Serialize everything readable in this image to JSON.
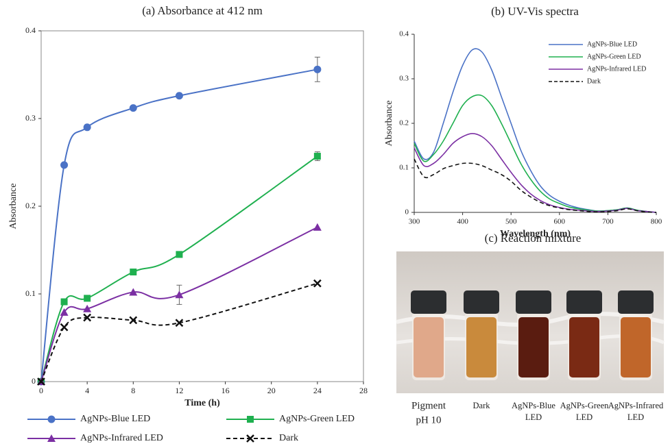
{
  "chart_data": [
    {
      "type": "line",
      "title": "(a) Absorbance at 412 nm",
      "x_label": "Time (h)",
      "y_label": "Absorbance",
      "x": [
        0,
        2,
        4,
        8,
        12,
        24
      ],
      "series": [
        {
          "name": "AgNPs-Blue LED",
          "color": "#4a72c6",
          "marker": "circle",
          "dash": false,
          "values": [
            0,
            0.247,
            0.29,
            0.312,
            0.326,
            0.356
          ],
          "errors": [
            null,
            null,
            null,
            null,
            null,
            0.014
          ]
        },
        {
          "name": "AgNPs-Green LED",
          "color": "#1fb04f",
          "marker": "square",
          "dash": false,
          "values": [
            0,
            0.091,
            0.095,
            0.125,
            0.145,
            0.257
          ],
          "errors": [
            null,
            null,
            null,
            null,
            null,
            0.005
          ]
        },
        {
          "name": "AgNPs-Infrared LED",
          "color": "#7b2fa3",
          "marker": "triangle",
          "dash": false,
          "values": [
            0,
            0.079,
            0.083,
            0.102,
            0.099,
            0.176
          ],
          "errors": [
            null,
            null,
            null,
            null,
            0.011,
            null
          ]
        },
        {
          "name": "Dark",
          "color": "#111111",
          "marker": "x",
          "dash": true,
          "values": [
            0,
            0.062,
            0.073,
            0.07,
            0.067,
            0.112
          ],
          "errors": [
            null,
            null,
            null,
            null,
            null,
            null
          ]
        }
      ],
      "xlim": [
        0,
        28
      ],
      "xticks": [
        0,
        4,
        8,
        12,
        16,
        20,
        24,
        28
      ],
      "ylim": [
        0,
        0.4
      ],
      "yticks": [
        0,
        0.1,
        0.2,
        0.3,
        0.4
      ],
      "grid": false,
      "legend": "bottom"
    },
    {
      "type": "line",
      "title": "(b) UV-Vis spectra",
      "x_label": "Wavelength (nm)",
      "y_label": "Absorbance",
      "x": [
        300,
        320,
        340,
        360,
        380,
        400,
        420,
        440,
        460,
        480,
        500,
        520,
        540,
        560,
        580,
        600,
        620,
        640,
        660,
        680,
        700,
        720,
        740,
        760,
        780,
        800
      ],
      "series": [
        {
          "name": "AgNPs-Blue LED",
          "color": "#4a72c6",
          "marker": "none",
          "dash": false,
          "values": [
            0.16,
            0.12,
            0.135,
            0.2,
            0.27,
            0.33,
            0.365,
            0.36,
            0.32,
            0.26,
            0.2,
            0.14,
            0.095,
            0.06,
            0.038,
            0.025,
            0.016,
            0.01,
            0.006,
            0.003,
            0.004,
            0.006,
            0.01,
            0.005,
            0.002,
            0
          ]
        },
        {
          "name": "AgNPs-Green LED",
          "color": "#1fb04f",
          "marker": "none",
          "dash": false,
          "values": [
            0.155,
            0.115,
            0.13,
            0.16,
            0.2,
            0.24,
            0.26,
            0.262,
            0.24,
            0.2,
            0.155,
            0.11,
            0.075,
            0.048,
            0.03,
            0.02,
            0.012,
            0.008,
            0.005,
            0.003,
            0.004,
            0.006,
            0.01,
            0.005,
            0.002,
            0
          ]
        },
        {
          "name": "AgNPs-Infrared LED",
          "color": "#7b2fa3",
          "marker": "none",
          "dash": false,
          "values": [
            0.145,
            0.105,
            0.11,
            0.13,
            0.155,
            0.17,
            0.177,
            0.17,
            0.15,
            0.12,
            0.09,
            0.063,
            0.042,
            0.027,
            0.017,
            0.011,
            0.007,
            0.005,
            0.003,
            0.002,
            0.003,
            0.005,
            0.009,
            0.004,
            0.002,
            0
          ]
        },
        {
          "name": "Dark",
          "color": "#111111",
          "marker": "none",
          "dash": true,
          "values": [
            0.12,
            0.08,
            0.085,
            0.098,
            0.105,
            0.11,
            0.11,
            0.105,
            0.095,
            0.085,
            0.07,
            0.05,
            0.035,
            0.023,
            0.015,
            0.01,
            0.006,
            0.004,
            0.002,
            0.001,
            0.002,
            0.004,
            0.008,
            0.004,
            0.001,
            0
          ]
        }
      ],
      "xlim": [
        300,
        800
      ],
      "xticks": [
        300,
        400,
        500,
        600,
        700,
        800
      ],
      "ylim": [
        0,
        0.4
      ],
      "yticks": [
        0,
        0.1,
        0.2,
        0.3,
        0.4
      ],
      "grid": false,
      "legend": "upper right"
    }
  ],
  "photo": {
    "title": "(c) Reaction mixture",
    "labels": [
      [
        "Pigment",
        "pH 10"
      ],
      [
        "Dark"
      ],
      [
        "AgNPs-Blue",
        "LED"
      ],
      [
        "AgNPs-Green",
        "LED"
      ],
      [
        "AgNPs-Infrared",
        "LED"
      ]
    ]
  }
}
